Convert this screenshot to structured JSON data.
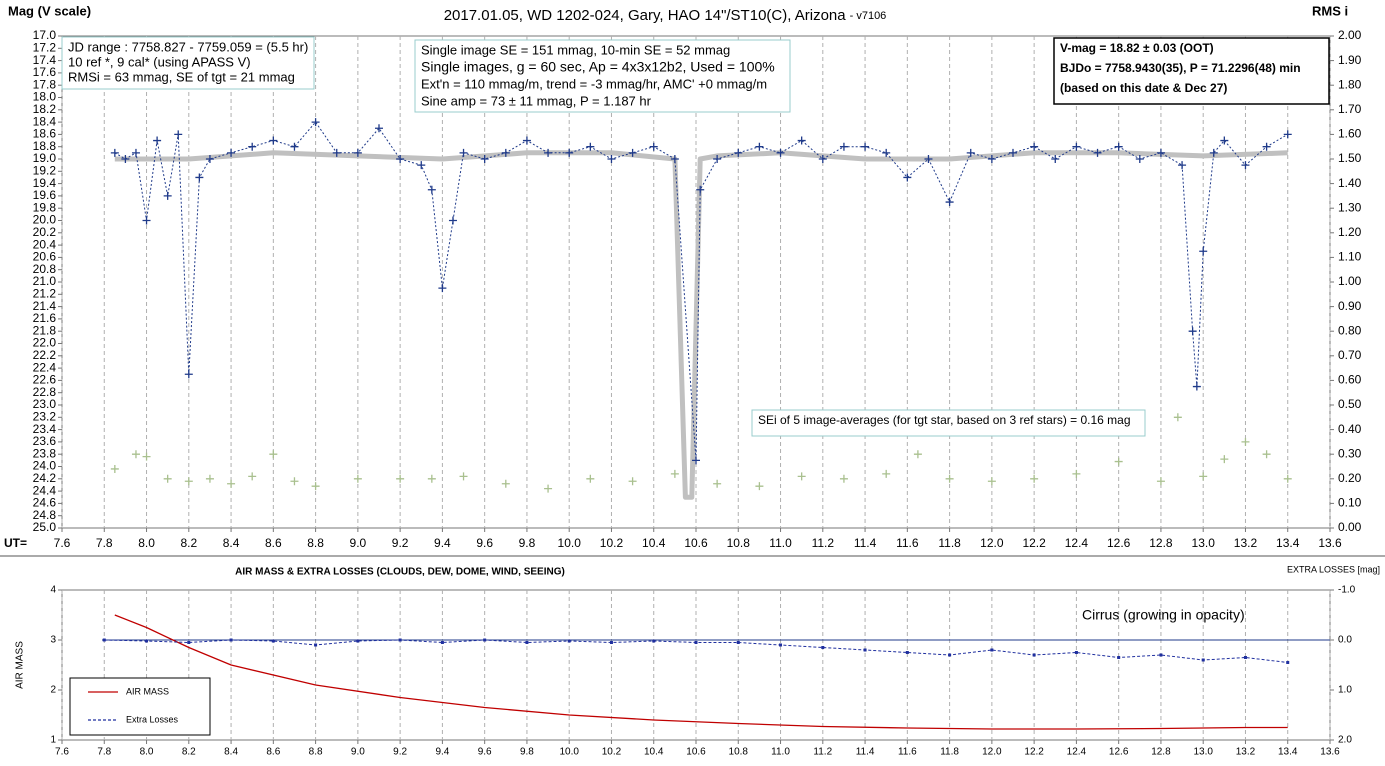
{
  "chart_data": [
    {
      "type": "scatter",
      "title": "2017.01.05, WD 1202-024, Gary, HAO 14\"/ST10(C), Arizona",
      "subtitle": "- v7106",
      "y_label": "Mag (V scale)",
      "y2_label": "RMS i",
      "x_label": "UT=",
      "annotations": [
        {
          "lines": [
            "JD range : 7758.827 - 7759.059 = (5.5 hr)",
            "10 ref *, 9 cal* (using APASS V)",
            "RMSi = 63 mmag, SE of tgt = 21 mmag"
          ]
        },
        {
          "lines": [
            "Single image SE = 151 mmag, 10-min SE = 52 mmag",
            "Single images, g = 60 sec, Ap = 4x3x12b2, Used = 100%",
            "Ext'n = 110 mmag/m, trend = -3 mmag/hr, AMC' +0 mmag/m",
            "Sine amp = 73 ± 11 mmag, P = 1.187 hr"
          ]
        },
        {
          "lines": [
            "V-mag = 18.82 ± 0.03 (OOT)",
            "BJDo = 7758.9430(35), P = 71.2296(48) min",
            "(based on this date & Dec 27)"
          ]
        },
        {
          "lines": [
            "SEi of 5 image-averages (for tgt star, based on 3 ref stars) = 0.16 mag"
          ]
        }
      ],
      "xlim": [
        7.6,
        13.6
      ],
      "xticks": [
        7.6,
        7.8,
        {
          "value": 8,
          "label": "8.0"
        },
        8.2,
        8.4,
        8.6,
        8.8,
        {
          "value": 9,
          "label": "9.0"
        },
        9.2,
        9.4,
        9.6,
        9.8,
        {
          "value": 10,
          "label": "10.0"
        },
        10.2,
        10.4,
        10.6,
        10.8,
        {
          "value": 11,
          "label": "11.0"
        },
        11.2,
        11.4,
        11.6,
        11.8,
        {
          "value": 12,
          "label": "12.0"
        },
        12.2,
        12.4,
        12.6,
        12.8,
        {
          "value": 13,
          "label": "13.0"
        },
        13.2,
        13.4,
        13.6
      ],
      "ylim": [
        25,
        17
      ],
      "yticks": [
        {
          "value": 17,
          "label": "17.0"
        },
        17.2,
        17.4,
        17.6,
        17.8,
        {
          "value": 18,
          "label": "18.0"
        },
        18.2,
        18.4,
        18.6,
        18.8,
        {
          "value": 19,
          "label": "19.0"
        },
        19.2,
        19.4,
        19.6,
        19.8,
        {
          "value": 20,
          "label": "20.0"
        },
        20.2,
        20.4,
        20.6,
        20.8,
        {
          "value": 21,
          "label": "21.0"
        },
        21.2,
        21.4,
        21.6,
        21.8,
        {
          "value": 22,
          "label": "22.0"
        },
        22.2,
        22.4,
        22.6,
        22.8,
        {
          "value": 23,
          "label": "23.0"
        },
        23.2,
        23.4,
        23.6,
        23.8,
        {
          "value": 24,
          "label": "24.0"
        },
        24.2,
        24.4,
        24.6,
        24.8,
        {
          "value": 25,
          "label": "25.0"
        }
      ],
      "y2lim": [
        0,
        2
      ],
      "y2ticks": [
        {
          "value": 0,
          "label": "0.00"
        },
        {
          "value": 0.1,
          "label": "0.10"
        },
        {
          "value": 0.2,
          "label": "0.20"
        },
        {
          "value": 0.3,
          "label": "0.30"
        },
        {
          "value": 0.4,
          "label": "0.40"
        },
        {
          "value": 0.5,
          "label": "0.50"
        },
        {
          "value": 0.6,
          "label": "0.60"
        },
        {
          "value": 0.7,
          "label": "0.70"
        },
        {
          "value": 0.8,
          "label": "0.80"
        },
        {
          "value": 0.9,
          "label": "0.90"
        },
        {
          "value": 1,
          "label": "1.00"
        },
        {
          "value": 1.1,
          "label": "1.10"
        },
        {
          "value": 1.2,
          "label": "1.20"
        },
        {
          "value": 1.3,
          "label": "1.30"
        },
        {
          "value": 1.4,
          "label": "1.40"
        },
        {
          "value": 1.5,
          "label": "1.50"
        },
        {
          "value": 1.6,
          "label": "1.60"
        },
        {
          "value": 1.7,
          "label": "1.70"
        },
        {
          "value": 1.8,
          "label": "1.80"
        },
        {
          "value": 1.9,
          "label": "1.90"
        },
        {
          "value": 2,
          "label": "2.00"
        }
      ],
      "grid": "x",
      "series": [
        {
          "color": "#c0c0c0",
          "marker": "none",
          "line": "thick",
          "x": [
            7.85,
            8.2,
            8.6,
            9.0,
            9.4,
            9.8,
            10.2,
            10.5,
            10.55,
            10.58,
            10.62,
            10.7,
            11.0,
            11.4,
            11.8,
            12.2,
            12.6,
            13.0,
            13.4
          ],
          "values": [
            19.0,
            19.0,
            18.9,
            18.95,
            19.0,
            18.9,
            18.9,
            19.0,
            24.5,
            24.5,
            19.0,
            18.95,
            18.9,
            19.0,
            19.0,
            18.9,
            18.9,
            18.95,
            18.9
          ]
        },
        {
          "color": "#1f3a8a",
          "marker": "cross",
          "line": "dotted",
          "x": [
            7.85,
            7.9,
            7.95,
            8.0,
            8.05,
            8.1,
            8.15,
            8.2,
            8.25,
            8.3,
            8.4,
            8.5,
            8.6,
            8.7,
            8.8,
            8.9,
            9.0,
            9.1,
            9.2,
            9.3,
            9.35,
            9.4,
            9.45,
            9.5,
            9.6,
            9.7,
            9.8,
            9.9,
            10.0,
            10.1,
            10.2,
            10.3,
            10.4,
            10.5,
            10.6,
            10.62,
            10.7,
            10.8,
            10.9,
            11.0,
            11.1,
            11.2,
            11.3,
            11.4,
            11.5,
            11.6,
            11.7,
            11.8,
            11.9,
            12.0,
            12.1,
            12.2,
            12.3,
            12.4,
            12.5,
            12.6,
            12.7,
            12.8,
            12.9,
            12.95,
            12.97,
            13.0,
            13.05,
            13.1,
            13.2,
            13.3,
            13.4
          ],
          "values": [
            18.9,
            19.0,
            18.9,
            20.0,
            18.7,
            19.6,
            18.6,
            22.5,
            19.3,
            19.0,
            18.9,
            18.8,
            18.7,
            18.8,
            18.4,
            18.9,
            18.9,
            18.5,
            19.0,
            19.1,
            19.5,
            21.1,
            20.0,
            18.9,
            19.0,
            18.9,
            18.7,
            18.9,
            18.9,
            18.8,
            19.0,
            18.9,
            18.8,
            19.0,
            23.9,
            19.5,
            19.0,
            18.9,
            18.8,
            18.9,
            18.7,
            19.0,
            18.8,
            18.8,
            18.9,
            19.3,
            19.0,
            19.7,
            18.9,
            19.0,
            18.9,
            18.8,
            19.0,
            18.8,
            18.9,
            18.8,
            19.0,
            18.9,
            19.1,
            21.8,
            22.7,
            20.5,
            18.9,
            18.7,
            19.1,
            18.8,
            18.6
          ]
        },
        {
          "color": "#a9c08f",
          "marker": "cross",
          "line": "none",
          "axis": "y2",
          "x": [
            7.85,
            7.95,
            8.0,
            8.1,
            8.2,
            8.3,
            8.4,
            8.5,
            8.6,
            8.7,
            8.8,
            9.0,
            9.2,
            9.35,
            9.5,
            9.7,
            9.9,
            10.1,
            10.3,
            10.5,
            10.7,
            10.9,
            11.1,
            11.3,
            11.5,
            11.65,
            11.8,
            12.0,
            12.2,
            12.4,
            12.6,
            12.8,
            12.88,
            13.0,
            13.1,
            13.2,
            13.3,
            13.4
          ],
          "values": [
            0.24,
            0.3,
            0.29,
            0.2,
            0.19,
            0.2,
            0.18,
            0.21,
            0.3,
            0.19,
            0.17,
            0.2,
            0.2,
            0.2,
            0.21,
            0.18,
            0.16,
            0.2,
            0.19,
            0.22,
            0.18,
            0.17,
            0.21,
            0.2,
            0.22,
            0.3,
            0.2,
            0.19,
            0.2,
            0.22,
            0.27,
            0.19,
            0.45,
            0.21,
            0.28,
            0.35,
            0.3,
            0.2
          ]
        }
      ]
    },
    {
      "type": "line",
      "title": "AIR MASS & EXTRA LOSSES (CLOUDS, DEW, DOME, WIND, SEEING)",
      "y_label": "AIR MASS",
      "y2_label": "EXTRA LOSSES [mag]",
      "annotations": [
        {
          "lines": [
            "Cirrus (growing in opacity)"
          ]
        }
      ],
      "xlim": [
        7.6,
        13.6
      ],
      "xticks": [
        7.6,
        7.8,
        {
          "value": 8,
          "label": "8.0"
        },
        8.2,
        8.4,
        8.6,
        8.8,
        {
          "value": 9,
          "label": "9.0"
        },
        9.2,
        9.4,
        9.6,
        9.8,
        {
          "value": 10,
          "label": "10.0"
        },
        10.2,
        10.4,
        10.6,
        10.8,
        {
          "value": 11,
          "label": "11.0"
        },
        11.2,
        11.4,
        11.6,
        11.8,
        {
          "value": 12,
          "label": "12.0"
        },
        12.2,
        12.4,
        12.6,
        12.8,
        {
          "value": 13,
          "label": "13.0"
        },
        13.2,
        13.4,
        13.6
      ],
      "ylim": [
        1,
        4
      ],
      "yticks": [
        1,
        2,
        3,
        4
      ],
      "y2lim": [
        2,
        -1
      ],
      "y2ticks": [
        {
          "value": -1,
          "label": "-1.0"
        },
        {
          "value": 0,
          "label": "0.0"
        },
        {
          "value": 1,
          "label": "1.0"
        },
        {
          "value": 2,
          "label": "2.0"
        }
      ],
      "grid": "x",
      "zero_line": true,
      "legend": "lower left",
      "series": [
        {
          "name": "AIR MASS",
          "color": "#c00000",
          "marker": "none",
          "line": "solid",
          "x": [
            7.85,
            8.0,
            8.2,
            8.4,
            8.8,
            9.2,
            9.6,
            10.0,
            10.4,
            10.8,
            11.2,
            11.6,
            12.0,
            12.4,
            12.8,
            13.2,
            13.4
          ],
          "values": [
            3.5,
            3.25,
            2.85,
            2.5,
            2.1,
            1.85,
            1.65,
            1.5,
            1.4,
            1.33,
            1.27,
            1.24,
            1.22,
            1.22,
            1.23,
            1.25,
            1.25
          ]
        },
        {
          "name": "Extra Losses",
          "color": "#1f2f9f",
          "marker": "dot",
          "line": "dashed",
          "axis": "y2",
          "x": [
            7.8,
            8.0,
            8.2,
            8.4,
            8.6,
            8.8,
            9.0,
            9.2,
            9.4,
            9.6,
            9.8,
            10.0,
            10.2,
            10.4,
            10.6,
            10.8,
            11.0,
            11.2,
            11.4,
            11.6,
            11.8,
            12.0,
            12.2,
            12.4,
            12.6,
            12.8,
            13.0,
            13.2,
            13.4
          ],
          "values": [
            0,
            0.02,
            0.05,
            0,
            0.02,
            0.1,
            0.02,
            0,
            0.05,
            0,
            0.05,
            0.02,
            0.05,
            0.02,
            0.05,
            0.05,
            0.1,
            0.15,
            0.2,
            0.25,
            0.3,
            0.2,
            0.3,
            0.25,
            0.35,
            0.3,
            0.4,
            0.35,
            0.45
          ]
        }
      ]
    }
  ]
}
